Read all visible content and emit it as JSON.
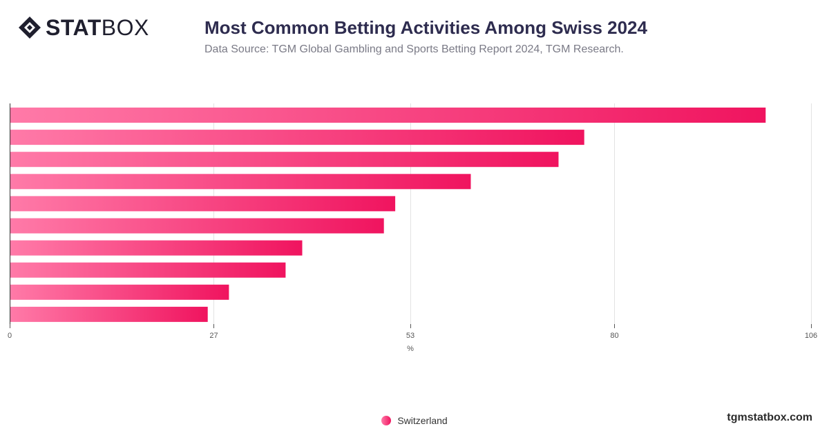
{
  "header": {
    "logo_bold": "STAT",
    "logo_light": "BOX",
    "title": "Most Common Betting Activities Among Swiss 2024",
    "subtitle": "Data Source: TGM Global Gambling and Sports Betting Report 2024, TGM Research."
  },
  "footer": {
    "watermark": "tgmstatbox.com"
  },
  "colors": {
    "bar_start": "#ff7aa8",
    "bar_end": "#f0145f",
    "grid": "#e2e2e2",
    "title": "#2e2c4f"
  },
  "chart_data": {
    "type": "bar",
    "orientation": "horizontal",
    "categories": [
      "",
      "",
      "",
      "",
      "",
      "",
      "",
      "",
      "",
      ""
    ],
    "series": [
      {
        "name": "Switzerland",
        "values": [
          100,
          76,
          72.6,
          61,
          51,
          49.5,
          38.7,
          36.5,
          29,
          26.2
        ]
      }
    ],
    "xlabel": "%",
    "xlim": [
      0,
      106
    ],
    "xticks": [
      0,
      27,
      53,
      80,
      106
    ],
    "grid": true,
    "legend_position": "bottom-center"
  }
}
